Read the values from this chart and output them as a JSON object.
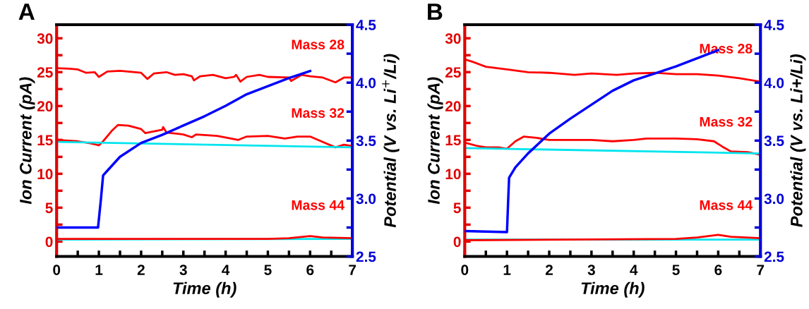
{
  "chart_data": [
    {
      "type": "line",
      "title": "A",
      "xlabel": "Time (h)",
      "ylabel": "Ion Current (pA)",
      "y2label": "Potential (V vs. Li$^{+}$/Li)",
      "xlim": [
        0,
        7
      ],
      "ylim": [
        -2.2,
        32
      ],
      "y2lim": [
        2.5,
        4.5
      ],
      "y2ticks": [
        2.5,
        {
          "value": 2.75,
          "label": null
        },
        {
          "value": 3,
          "label": "3.0"
        },
        {
          "value": 3.25,
          "label": null
        },
        3.5,
        {
          "value": 3.75,
          "label": null
        },
        {
          "value": 4,
          "label": "4.0"
        },
        {
          "value": 4.25,
          "label": null
        },
        4.5
      ],
      "xticks": [
        0,
        {
          "value": 0.5,
          "label": null
        },
        1,
        {
          "value": 1.5,
          "label": null
        },
        2,
        {
          "value": 2.5,
          "label": null
        },
        3,
        {
          "value": 3.5,
          "label": null
        },
        4,
        {
          "value": 4.5,
          "label": null
        },
        5,
        {
          "value": 5.5,
          "label": null
        },
        6,
        {
          "value": 6.5,
          "label": null
        },
        7
      ],
      "yticks": [
        0,
        {
          "value": 2.5,
          "label": null
        },
        5,
        {
          "value": 7.5,
          "label": null
        },
        10,
        {
          "value": 12.5,
          "label": null
        },
        15,
        {
          "value": 17.5,
          "label": null
        },
        20,
        {
          "value": 22.5,
          "label": null
        },
        25,
        {
          "value": 27.5,
          "label": null
        },
        30
      ],
      "series": [
        {
          "name": "Mass 28",
          "color": "#ff0000",
          "x": [
            0,
            0.3,
            0.5,
            0.7,
            0.9,
            1.0,
            1.2,
            1.5,
            2.0,
            2.15,
            2.3,
            2.6,
            2.8,
            3.0,
            3.2,
            3.25,
            3.4,
            3.7,
            4.0,
            4.2,
            4.25,
            4.35,
            4.5,
            4.8,
            5.0,
            5.5,
            5.55,
            5.8,
            6.0,
            6.3,
            6.6,
            6.8,
            7.0
          ],
          "values": [
            25.6,
            25.5,
            25.4,
            24.9,
            25.0,
            24.3,
            25.1,
            25.2,
            24.9,
            24.0,
            24.8,
            25.0,
            24.6,
            24.7,
            24.4,
            23.8,
            24.4,
            24.6,
            24.1,
            24.3,
            24.6,
            23.6,
            24.3,
            24.6,
            24.3,
            24.2,
            23.7,
            24.6,
            24.4,
            24.2,
            23.5,
            24.2,
            24.2
          ]
        },
        {
          "name": "Mass 32",
          "color": "#ff0000",
          "x": [
            0,
            0.5,
            0.8,
            1.0,
            1.1,
            1.3,
            1.45,
            1.7,
            2.0,
            2.1,
            2.5,
            2.52,
            2.6,
            3.0,
            3.2,
            3.3,
            3.8,
            4.3,
            4.5,
            5.0,
            5.4,
            5.7,
            6.0,
            6.3,
            6.6,
            6.8,
            7.0
          ],
          "values": [
            15.0,
            14.8,
            14.5,
            14.2,
            14.8,
            16.3,
            17.2,
            17.1,
            16.6,
            16.0,
            16.5,
            16.9,
            16.1,
            15.8,
            15.4,
            15.8,
            15.6,
            15.0,
            15.5,
            15.6,
            15.2,
            15.5,
            15.5,
            14.7,
            13.9,
            14.3,
            14.1
          ]
        },
        {
          "color": "#00e5ee",
          "x": [
            0,
            7
          ],
          "values": [
            14.7,
            13.9
          ]
        },
        {
          "color": "#00e5ee",
          "x": [
            0,
            7
          ],
          "values": [
            0.3,
            0.4
          ]
        },
        {
          "name": "Mass 44",
          "color": "#ff0000",
          "x": [
            0,
            5,
            5.5,
            6.0,
            6.3,
            7
          ],
          "values": [
            0.4,
            0.4,
            0.5,
            0.8,
            0.6,
            0.5
          ]
        },
        {
          "color": "#0000ff",
          "axis": "y2",
          "x": [
            0,
            0.98,
            1.05,
            1.1,
            1.2,
            1.5,
            2.0,
            2.5,
            3.0,
            3.5,
            4.0,
            4.5,
            5.0,
            5.5,
            6.0
          ],
          "values": [
            2.75,
            2.75,
            3.0,
            3.2,
            3.24,
            3.36,
            3.48,
            3.55,
            3.63,
            3.71,
            3.8,
            3.9,
            3.97,
            4.04,
            4.1
          ]
        }
      ]
    },
    {
      "type": "line",
      "title": "B",
      "xlabel": "Time (h)",
      "ylabel": "Ion Current (pA)",
      "y2label": "Potential (V vs. Li+/Li)",
      "xlim": [
        0,
        7
      ],
      "ylim": [
        -2.2,
        32
      ],
      "y2lim": [
        2.5,
        4.5
      ],
      "y2ticks": [
        2.5,
        {
          "value": 2.75,
          "label": null
        },
        {
          "value": 3,
          "label": "3.0"
        },
        {
          "value": 3.25,
          "label": null
        },
        3.5,
        {
          "value": 3.75,
          "label": null
        },
        {
          "value": 4,
          "label": "4.0"
        },
        {
          "value": 4.25,
          "label": null
        },
        4.5
      ],
      "xticks": [
        0,
        {
          "value": 0.5,
          "label": null
        },
        1,
        {
          "value": 1.5,
          "label": null
        },
        2,
        {
          "value": 2.5,
          "label": null
        },
        3,
        {
          "value": 3.5,
          "label": null
        },
        4,
        {
          "value": 4.5,
          "label": null
        },
        5,
        {
          "value": 5.5,
          "label": null
        },
        6,
        {
          "value": 6.5,
          "label": null
        },
        7
      ],
      "yticks": [
        0,
        {
          "value": 2.5,
          "label": null
        },
        5,
        {
          "value": 7.5,
          "label": null
        },
        10,
        {
          "value": 12.5,
          "label": null
        },
        15,
        {
          "value": 17.5,
          "label": null
        },
        20,
        {
          "value": 22.5,
          "label": null
        },
        25,
        {
          "value": 27.5,
          "label": null
        },
        30
      ],
      "series": [
        {
          "name": "Mass 28",
          "color": "#ff0000",
          "x": [
            0,
            0.2,
            0.5,
            1.0,
            1.5,
            2.0,
            2.6,
            3.0,
            3.6,
            4.0,
            4.5,
            5.0,
            5.5,
            6.0,
            6.5,
            7.0
          ],
          "values": [
            26.9,
            26.5,
            25.8,
            25.4,
            25.0,
            24.9,
            24.6,
            24.8,
            24.6,
            24.8,
            24.9,
            24.7,
            24.7,
            24.5,
            24.1,
            23.6
          ]
        },
        {
          "name": "Mass 32",
          "color": "#ff0000",
          "x": [
            0,
            0.3,
            0.5,
            0.8,
            1.0,
            1.2,
            1.4,
            1.7,
            2.0,
            2.5,
            3.0,
            3.5,
            4.0,
            4.3,
            5.0,
            5.5,
            5.9,
            6.1,
            6.3,
            6.7,
            7.0
          ],
          "values": [
            14.6,
            14.1,
            13.9,
            13.9,
            13.7,
            14.8,
            15.5,
            15.3,
            15.0,
            15.0,
            15.0,
            14.8,
            15.0,
            15.2,
            15.2,
            15.1,
            14.8,
            14.0,
            13.3,
            13.2,
            12.8
          ]
        },
        {
          "color": "#00e5ee",
          "x": [
            0,
            7
          ],
          "values": [
            13.8,
            13.0
          ]
        },
        {
          "color": "#00e5ee",
          "x": [
            0,
            7
          ],
          "values": [
            0.3,
            0.3
          ]
        },
        {
          "name": "Mass 44",
          "color": "#ff0000",
          "x": [
            0,
            5,
            5.5,
            6.0,
            6.3,
            7
          ],
          "values": [
            0.2,
            0.4,
            0.6,
            1.0,
            0.7,
            0.5
          ]
        },
        {
          "color": "#0000ff",
          "axis": "y2",
          "x": [
            0,
            1.0,
            1.03,
            1.05,
            1.2,
            1.5,
            2.0,
            2.5,
            3.0,
            3.5,
            4.0,
            4.5,
            5.0,
            5.5,
            6.0
          ],
          "values": [
            2.72,
            2.71,
            3.0,
            3.18,
            3.27,
            3.39,
            3.56,
            3.69,
            3.81,
            3.93,
            4.02,
            4.08,
            4.14,
            4.21,
            4.28
          ]
        }
      ]
    }
  ]
}
